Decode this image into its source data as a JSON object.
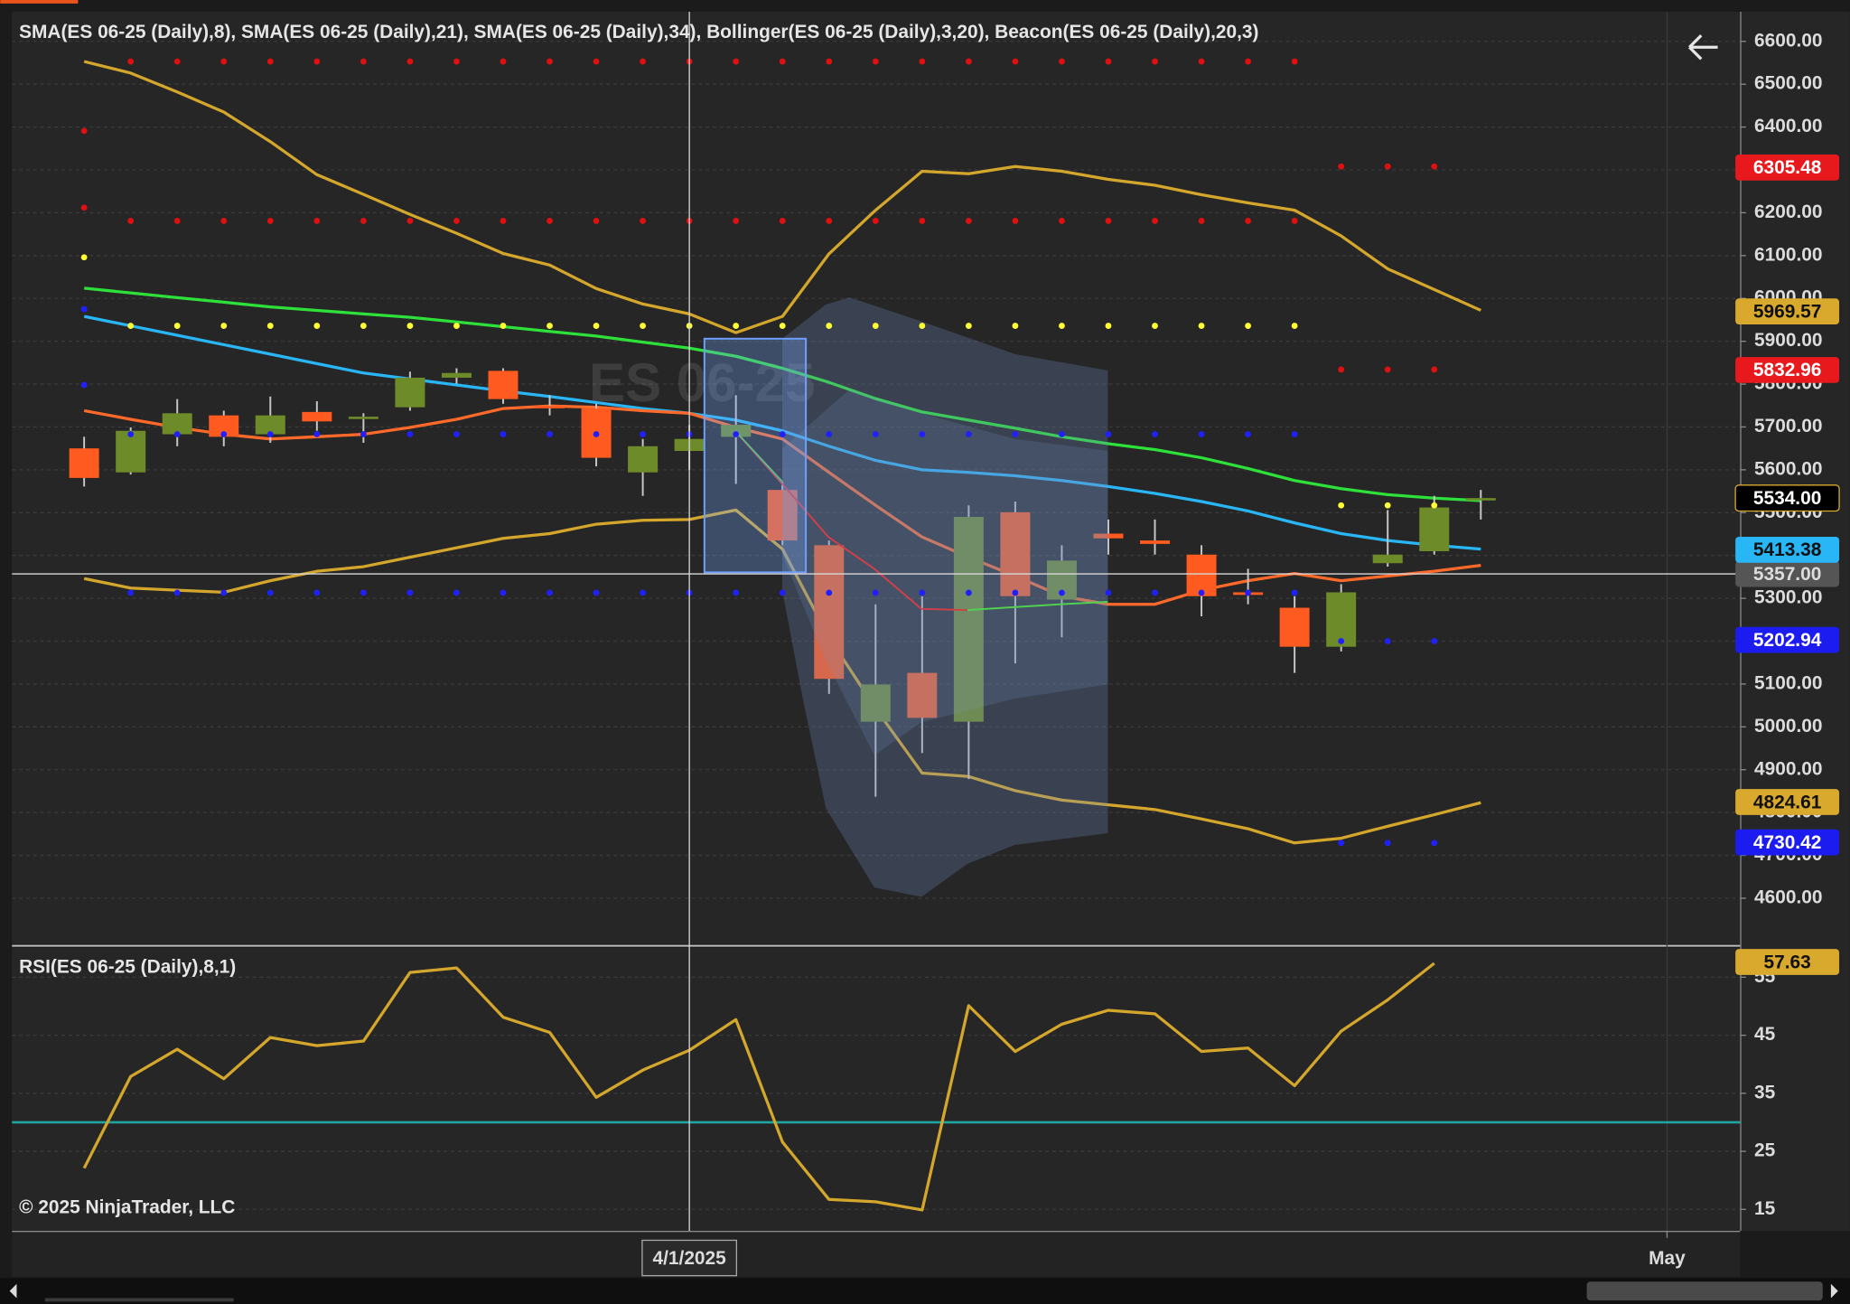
{
  "copyright": "© 2025 NinjaTrader, LLC",
  "chart_data": [
    {
      "type": "candlestick",
      "title": "SMA(ES 06-25 (Daily),8), SMA(ES 06-25 (Daily),21), SMA(ES 06-25 (Daily),34), Bollinger(ES 06-25 (Daily),3,20), Beacon(ES 06-25 (Daily),20,3)",
      "watermark": "ES 06-25",
      "x": [
        0,
        1,
        2,
        3,
        4,
        5,
        6,
        7,
        8,
        9,
        10,
        11,
        12,
        13,
        14,
        15,
        16,
        17,
        18,
        19,
        20,
        21,
        22,
        23,
        24,
        25,
        26,
        27,
        28,
        29,
        30
      ],
      "open": [
        5650,
        5594,
        5683,
        5727,
        5683,
        5735,
        5719,
        5746,
        5815,
        5831,
        5749,
        5743,
        5594,
        5644,
        5677,
        5553,
        5424,
        5012,
        5126,
        5012,
        5501,
        5297,
        5451,
        5435,
        5402,
        5314,
        5278,
        5187,
        5382,
        5410,
        5534
      ],
      "high": [
        5677,
        5699,
        5765,
        5738,
        5771,
        5760,
        5732,
        5829,
        5837,
        5837,
        5774,
        5754,
        5672,
        5705,
        5774,
        5572,
        5435,
        5286,
        5305,
        5517,
        5526,
        5424,
        5484,
        5484,
        5424,
        5369,
        5305,
        5333,
        5506,
        5539,
        5553
      ],
      "low": [
        5561,
        5589,
        5655,
        5655,
        5663,
        5691,
        5663,
        5738,
        5801,
        5754,
        5727,
        5608,
        5539,
        5600,
        5567,
        5424,
        5077,
        4837,
        4939,
        4878,
        5148,
        5209,
        5402,
        5402,
        5258,
        5286,
        5126,
        5176,
        5374,
        5402,
        5484
      ],
      "close": [
        5581,
        5691,
        5732,
        5677,
        5727,
        5713,
        5724,
        5815,
        5826,
        5765,
        5746,
        5628,
        5655,
        5672,
        5705,
        5435,
        5112,
        5099,
        5021,
        5490,
        5305,
        5388,
        5440,
        5427,
        5305,
        5308,
        5187,
        5314,
        5402,
        5512,
        5534
      ],
      "up_color": "#6e8b2a",
      "down_color": "#ff5a1f",
      "wick_color": "#c8c8c8",
      "series": [
        {
          "style": "line",
          "color": "#d4a72c",
          "values": [
            6553,
            6526,
            6482,
            6435,
            6366,
            6289,
            6243,
            6196,
            6152,
            6105,
            6078,
            6023,
            5987,
            5964,
            5920,
            5958,
            6104,
            6206,
            6297,
            6291,
            6308,
            6297,
            6278,
            6264,
            6242,
            6223,
            6206,
            6146,
            6069,
            6021,
            5972
          ]
        },
        {
          "style": "line",
          "color": "#d4a72c",
          "values": [
            5346,
            5324,
            5319,
            5314,
            5341,
            5363,
            5374,
            5396,
            5418,
            5440,
            5451,
            5473,
            5482,
            5484,
            5506,
            5415,
            5209,
            5043,
            4892,
            4884,
            4851,
            4829,
            4818,
            4807,
            4785,
            4762,
            4729,
            4740,
            4768,
            4795,
            4823
          ]
        },
        {
          "style": "line",
          "color": "#2ee03a",
          "values": [
            6024,
            6013,
            6002,
            5991,
            5980,
            5972,
            5964,
            5956,
            5945,
            5934,
            5923,
            5912,
            5898,
            5884,
            5865,
            5837,
            5804,
            5766,
            5735,
            5716,
            5697,
            5677,
            5661,
            5647,
            5628,
            5603,
            5575,
            5556,
            5542,
            5534,
            5528
          ]
        },
        {
          "style": "line",
          "color": "#29b6f6",
          "values": [
            5958,
            5936,
            5914,
            5892,
            5870,
            5848,
            5826,
            5812,
            5798,
            5784,
            5771,
            5757,
            5743,
            5732,
            5716,
            5691,
            5655,
            5622,
            5600,
            5594,
            5586,
            5575,
            5561,
            5545,
            5526,
            5504,
            5476,
            5451,
            5435,
            5424,
            5415
          ]
        },
        {
          "style": "line",
          "color": "#ff6a2a",
          "values": [
            5738,
            5718,
            5699,
            5683,
            5672,
            5677,
            5683,
            5699,
            5718,
            5743,
            5749,
            5746,
            5738,
            5732,
            5699,
            5672,
            5594,
            5517,
            5443,
            5396,
            5352,
            5305,
            5286,
            5286,
            5319,
            5341,
            5358,
            5341,
            5352,
            5363,
            5377
          ]
        },
        {
          "style": "dots",
          "color": "#e01010",
          "values": [
            6391,
            6553,
            6553,
            6553,
            6553,
            6553,
            6553,
            6553,
            6553,
            6553,
            6553,
            6553,
            6553,
            6553,
            6553,
            6553,
            6553,
            6553,
            6553,
            6553,
            6553,
            6553,
            6553,
            6553,
            6553,
            6553,
            6553,
            6308,
            6308,
            6308,
            null
          ]
        },
        {
          "style": "dots",
          "color": "#e01010",
          "values": [
            6212,
            6181,
            6181,
            6181,
            6181,
            6181,
            6181,
            6181,
            6181,
            6181,
            6181,
            6181,
            6181,
            6181,
            6181,
            6181,
            6181,
            6181,
            6181,
            6181,
            6181,
            6181,
            6181,
            6181,
            6181,
            6181,
            6181,
            5834,
            5834,
            5834,
            null
          ]
        },
        {
          "style": "dots",
          "color": "#ffff33",
          "values": [
            6096,
            5936,
            5936,
            5936,
            5936,
            5936,
            5936,
            5936,
            5936,
            5936,
            5936,
            5936,
            5936,
            5936,
            5936,
            5936,
            5936,
            5936,
            5936,
            5936,
            5936,
            5936,
            5936,
            5936,
            5936,
            5936,
            5936,
            5517,
            5517,
            5517,
            null
          ]
        },
        {
          "style": "dots",
          "color": "#2020ff",
          "values": [
            5975,
            5683,
            5683,
            5683,
            5683,
            5683,
            5683,
            5683,
            5683,
            5683,
            5683,
            5683,
            5683,
            5683,
            5683,
            5683,
            5683,
            5683,
            5683,
            5683,
            5683,
            5683,
            5683,
            5683,
            5683,
            5683,
            5683,
            5200,
            5200,
            5200,
            null
          ]
        },
        {
          "style": "dots",
          "color": "#2020ff",
          "values": [
            5798,
            5313,
            5313,
            5313,
            5313,
            5313,
            5313,
            5313,
            5313,
            5313,
            5313,
            5313,
            5313,
            5313,
            5313,
            5313,
            5313,
            5313,
            5313,
            5313,
            5313,
            5313,
            5313,
            5313,
            5313,
            5313,
            5313,
            4729,
            4729,
            4729,
            null
          ]
        }
      ],
      "price_labels": [
        {
          "value": 6305.48,
          "label": "6305.48",
          "color": "#e8191c",
          "text_color": "#ffffff"
        },
        {
          "value": 5969.57,
          "label": "5969.57",
          "color": "#d9a92e",
          "text_color": "#111111"
        },
        {
          "value": 5832.96,
          "label": "5832.96",
          "color": "#e8191c",
          "text_color": "#ffffff"
        },
        {
          "value": 5534,
          "label": "5534.00",
          "color": "#000000",
          "text_color": "#ffffff"
        },
        {
          "value": 5413.38,
          "label": "5413.38",
          "color": "#29b6f6",
          "text_color": "#111111"
        },
        {
          "value": 5202.94,
          "label": "5202.94",
          "color": "#1c1cf0",
          "text_color": "#ffffff"
        },
        {
          "value": 4824.61,
          "label": "4824.61",
          "color": "#d9a92e",
          "text_color": "#111111"
        },
        {
          "value": 4730.42,
          "label": "4730.42",
          "color": "#1c1cf0",
          "text_color": "#ffffff"
        }
      ],
      "crosshair": {
        "x": {
          "value": 13,
          "label": "4/1/2025"
        },
        "y": {
          "value": 5357,
          "label": "5357.00"
        }
      },
      "xlim": [
        -1.55,
        35.57
      ],
      "ylim": [
        4493,
        6669
      ],
      "yticks": [
        {
          "value": 6600,
          "label": "6600.00"
        },
        {
          "value": 6500,
          "label": "6500.00"
        },
        {
          "value": 6400,
          "label": "6400.00"
        },
        {
          "value": 6300,
          "label": "6300.00"
        },
        {
          "value": 6200,
          "label": "6200.00"
        },
        {
          "value": 6100,
          "label": "6100.00"
        },
        {
          "value": 6000,
          "label": "6000.00"
        },
        {
          "value": 5900,
          "label": "5900.00"
        },
        {
          "value": 5800,
          "label": "5800.00"
        },
        {
          "value": 5700,
          "label": "5700.00"
        },
        {
          "value": 5600,
          "label": "5600.00"
        },
        {
          "value": 5500,
          "label": "5500.00"
        },
        {
          "value": 5400,
          "label": "5400.00"
        },
        {
          "value": 5300,
          "label": "5300.00"
        },
        {
          "value": 5200,
          "label": "5200.00"
        },
        {
          "value": 5100,
          "label": "5100.00"
        },
        {
          "value": 5000,
          "label": "5000.00"
        },
        {
          "value": 4900,
          "label": "4900.00"
        },
        {
          "value": 4800,
          "label": "4800.00"
        },
        {
          "value": 4700,
          "label": "4700.00"
        },
        {
          "value": 4600,
          "label": "4600.00"
        }
      ],
      "grid": true
    },
    {
      "type": "line",
      "title": "RSI(ES 06-25 (Daily),8,1)",
      "x": [
        0,
        1,
        2,
        3,
        4,
        5,
        6,
        7,
        8,
        9,
        10,
        11,
        12,
        13,
        14,
        15,
        16,
        17,
        18,
        19,
        20,
        21,
        22,
        23,
        24,
        25,
        26,
        27,
        28,
        29,
        30
      ],
      "series": [
        {
          "style": "line",
          "color": "#d4a72c",
          "values": [
            22.1,
            37.9,
            42.6,
            37.5,
            44.6,
            43.2,
            44.0,
            55.8,
            56.6,
            48.1,
            45.5,
            34.3,
            39.0,
            42.4,
            47.7,
            26.6,
            16.7,
            16.3,
            14.9,
            50.1,
            42.2,
            46.9,
            49.3,
            48.7,
            42.2,
            42.8,
            36.3,
            45.7,
            51.1,
            57.4,
            null
          ]
        }
      ],
      "price_labels": [
        {
          "value": 57.63,
          "label": "57.63",
          "color": "#d9a92e",
          "text_color": "#111111"
        }
      ],
      "level": {
        "value": 30,
        "color": "#1fa5a0"
      },
      "xlim": [
        -1.55,
        35.57
      ],
      "xticks": [
        {
          "value": 34,
          "label": "May"
        }
      ],
      "ylim": [
        11.3,
        60.1
      ],
      "yticks": [
        15,
        25,
        35,
        45,
        55
      ],
      "grid": true
    }
  ]
}
